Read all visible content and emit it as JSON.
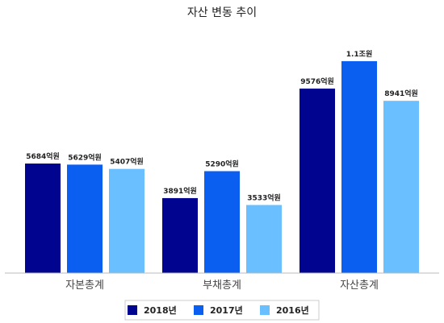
{
  "chart_data": {
    "type": "bar",
    "title": "자산 변동 추이",
    "xlabel": "",
    "ylabel": "",
    "ylim": [
      0,
      12000
    ],
    "grid": false,
    "legend_position": "bottom-center",
    "categories": [
      "자본총계",
      "부채총계",
      "자산총계"
    ],
    "series": [
      {
        "name": "2018년",
        "color": "#00048f",
        "values": [
          5684,
          3891,
          9576
        ],
        "labels": [
          "5684억원",
          "3891억원",
          "9576억원"
        ]
      },
      {
        "name": "2017년",
        "color": "#0a5ff0",
        "values": [
          5629,
          5290,
          11000
        ],
        "labels": [
          "5629억원",
          "5290억원",
          "1.1조원"
        ]
      },
      {
        "name": "2016년",
        "color": "#6ac0ff",
        "values": [
          5407,
          3533,
          8941
        ],
        "labels": [
          "5407억원",
          "3533억원",
          "8941억원"
        ]
      }
    ]
  }
}
